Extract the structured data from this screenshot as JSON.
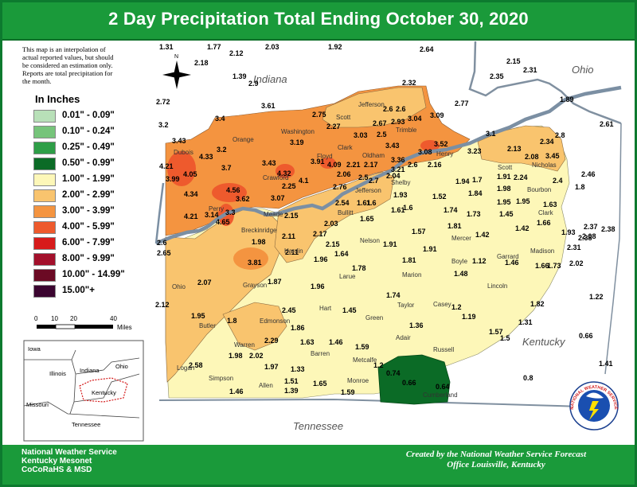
{
  "title": "2 Day Precipitation Total Ending October 30, 2020",
  "note_lines": [
    "This map is an interpolation of",
    "actual reported values, but should",
    "be considered an estimation only.",
    "Reports are total precipitation for",
    "the month."
  ],
  "legend": {
    "title": "In Inches",
    "items": [
      {
        "label": "0.01\" - 0.09\"",
        "color": "#b8e0b8"
      },
      {
        "label": "0.10\" - 0.24\"",
        "color": "#76c47a"
      },
      {
        "label": "0.25\" - 0.49\"",
        "color": "#2e9e47"
      },
      {
        "label": "0.50\" - 0.99\"",
        "color": "#0b6b26"
      },
      {
        "label": "1.00\" - 1.99\"",
        "color": "#fdf7b8"
      },
      {
        "label": "2.00\" - 2.99\"",
        "color": "#f9c46e"
      },
      {
        "label": "3.00\" - 3.99\"",
        "color": "#f49440"
      },
      {
        "label": "4.00\" - 5.99\"",
        "color": "#ee5a2d"
      },
      {
        "label": "6.00\" - 7.99\"",
        "color": "#d71b1b"
      },
      {
        "label": "8.00\" - 9.99\"",
        "color": "#a3102b"
      },
      {
        "label": "10.00\" - 14.99\"",
        "color": "#6b0a24"
      },
      {
        "label": "15.00\"+",
        "color": "#3b0530"
      }
    ]
  },
  "scalebar": {
    "ticks": [
      "0",
      "10",
      "20",
      "40"
    ],
    "unit": "Miles"
  },
  "north_label": "N",
  "states": {
    "indiana": "Indiana",
    "ohio": "Ohio",
    "kentucky": "Kentucky",
    "tennessee": "Tennessee"
  },
  "inset": {
    "states": [
      "Iowa",
      "Illinois",
      "Indiana",
      "Ohio",
      "Missouri",
      "Kentucky",
      "Tennessee"
    ]
  },
  "counties": [
    "Jefferson",
    "Scott",
    "Trimble",
    "Washington",
    "Clark",
    "Henry",
    "Orange",
    "Dubois",
    "Crawford",
    "Floyd",
    "Perry",
    "Jefferson",
    "Shelby",
    "Oldham",
    "Scott",
    "Nicholas",
    "Bourbon",
    "Clark",
    "Mercer",
    "Nelson",
    "Bullitt",
    "Meade",
    "Breckinridge",
    "Hardin",
    "Garrard",
    "Madison",
    "Boyle",
    "Marion",
    "Larue",
    "Grayson",
    "Ohio",
    "Hart",
    "Lincoln",
    "Taylor",
    "Casey",
    "Green",
    "Edmonson",
    "Butler",
    "Adair",
    "Warren",
    "Barren",
    "Russell",
    "Logan",
    "Simpson",
    "Allen",
    "Metcalfe",
    "Monroe",
    "Cumberland"
  ],
  "values": [
    "1.31",
    "1.77",
    "2.12",
    "2.03",
    "1.92",
    "2.64",
    "2.18",
    "1.39",
    "2.9",
    "2.32",
    "2.15",
    "2.35",
    "2.31",
    "1.89",
    "2.61",
    "2.72",
    "3.2",
    "3.61",
    "2.75",
    "2.6",
    "2.6",
    "3.09",
    "2.77",
    "3.4",
    "3.43",
    "2.27",
    "2.67",
    "2.93",
    "3.04",
    "3.1",
    "2.8",
    "3.19",
    "3.03",
    "2.5",
    "3.43",
    "3.52",
    "3.08",
    "3.23",
    "4.33",
    "3.2",
    "2.13",
    "2.34",
    "4.21",
    "3.7",
    "3.43",
    "3.91",
    "4.09",
    "2.21",
    "2.17",
    "3.36",
    "2.6",
    "2.16",
    "2.08",
    "3.45",
    "3.99",
    "4.05",
    "4.32",
    "2.06",
    "2.5",
    "2.7",
    "3.21",
    "2.04",
    "1.91",
    "2.24",
    "2.46",
    "4.1",
    "2.25",
    "2.76",
    "1.94",
    "1.7",
    "1.98",
    "4.34",
    "4.56",
    "3.07",
    "1.93",
    "1.84",
    "1.95",
    "2.4",
    "1.8",
    "3.62",
    "2.54",
    "1.61",
    "1.52",
    "1.6",
    "1.95",
    "1.63",
    "4.21",
    "3.14",
    "3.3",
    "2.15",
    "1.6",
    "1.74",
    "1.73",
    "1.45",
    "1.81",
    "4.65",
    "1.65",
    "1.61",
    "1.42",
    "1.66",
    "2.37",
    "2.38",
    "2.03",
    "1.57",
    "1.42",
    "1.93",
    "2.08",
    "2.6",
    "1.98",
    "2.11",
    "2.17",
    "2.15",
    "1.91",
    "1.91",
    "2.65",
    "3.81",
    "2.11",
    "1.96",
    "1.64",
    "1.81",
    "1.12",
    "1.46",
    "1.66",
    "1.73",
    "2.31",
    "2.38",
    "2.02",
    "1.48",
    "1.78",
    "1.87",
    "2.07",
    "1.96",
    "1.74",
    "1.82",
    "1.22",
    "2.12",
    "1.45",
    "1.2",
    "1.19",
    "1.95",
    "2.45",
    "1.36",
    "1.31",
    "1.57",
    "1.5",
    "0.66",
    "1.8",
    "1.86",
    "2.29",
    "1.63",
    "1.46",
    "1.59",
    "1.98",
    "2.02",
    "1.41",
    "2.58",
    "1.97",
    "1.33",
    "0.74",
    "0.8",
    "0.66",
    "0.64",
    "1.46",
    "1.51",
    "1.39",
    "1.65",
    "1.59",
    "1.2"
  ],
  "footer_left": [
    "National Weather Service",
    "Kentucky Mesonet",
    "CoCoRaHS & MSD"
  ],
  "footer_right": [
    "Created by the National Weather Service Forecast",
    "Office Louisville, Kentucky"
  ],
  "nws_logo_text": "NATIONAL WEATHER SERVICE",
  "colors": {
    "header": "#1a9a3a",
    "border": "#0d7a2f",
    "river": "#7b8fa3"
  }
}
